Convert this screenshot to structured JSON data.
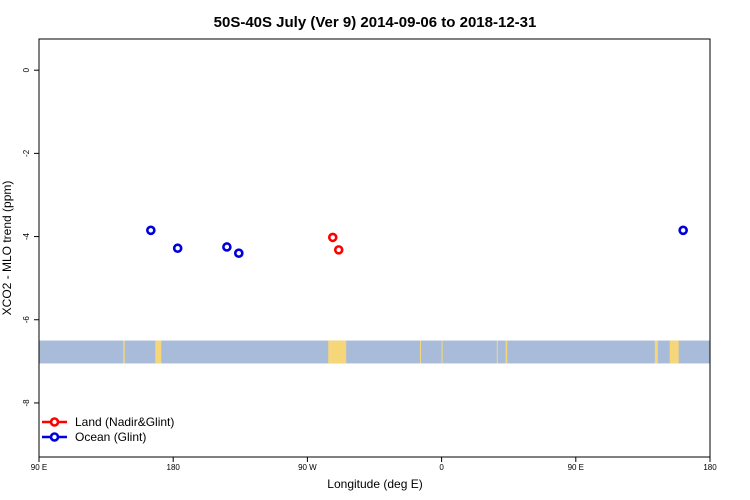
{
  "chart_data": {
    "type": "scatter",
    "title": "50S-40S July (Ver 9)   2014-09-06 to 2018-12-31",
    "xlabel": "Longitude (deg E)",
    "ylabel": "XCO2 - MLO trend (ppm)",
    "x_ticks": [
      {
        "value": 90,
        "label": "90 E"
      },
      {
        "value": 180,
        "label": "180"
      },
      {
        "value": 270,
        "label": "90 W"
      },
      {
        "value": 360,
        "label": "0"
      },
      {
        "value": 450,
        "label": "90 E"
      },
      {
        "value": 540,
        "label": "180"
      }
    ],
    "y_ticks": [
      {
        "value": 0,
        "label": "0"
      },
      {
        "value": -2,
        "label": "-2"
      },
      {
        "value": -4,
        "label": "-4"
      },
      {
        "value": -6,
        "label": "-6"
      },
      {
        "value": -8,
        "label": "-8"
      }
    ],
    "xlim": [
      90,
      540
    ],
    "ylim": [
      -9.3,
      0.75
    ],
    "grid": false,
    "legend_position": "bottom-left",
    "series": [
      {
        "name": "Land (Nadir&Glint)",
        "color": "#ff0000",
        "x": [
          287,
          291
        ],
        "y": [
          -4.02,
          -4.32
        ]
      },
      {
        "name": "Ocean (Glint)",
        "color": "#0000dd",
        "x": [
          165,
          183,
          216,
          224,
          522
        ],
        "y": [
          -3.85,
          -4.28,
          -4.25,
          -4.4,
          -3.85
        ]
      }
    ],
    "map_strip": {
      "y_top": -6.5,
      "y_bottom": -7.05,
      "ocean_color": "#a8bcda",
      "land_color": "#f5d77a",
      "land_segments": [
        [
          146.5,
          147.5
        ],
        [
          168,
          172
        ],
        [
          284,
          296
        ],
        [
          345.5,
          346
        ],
        [
          360,
          360.5
        ],
        [
          403,
          404
        ],
        [
          397,
          397.5
        ],
        [
          503,
          505
        ],
        [
          513,
          519
        ]
      ]
    }
  }
}
